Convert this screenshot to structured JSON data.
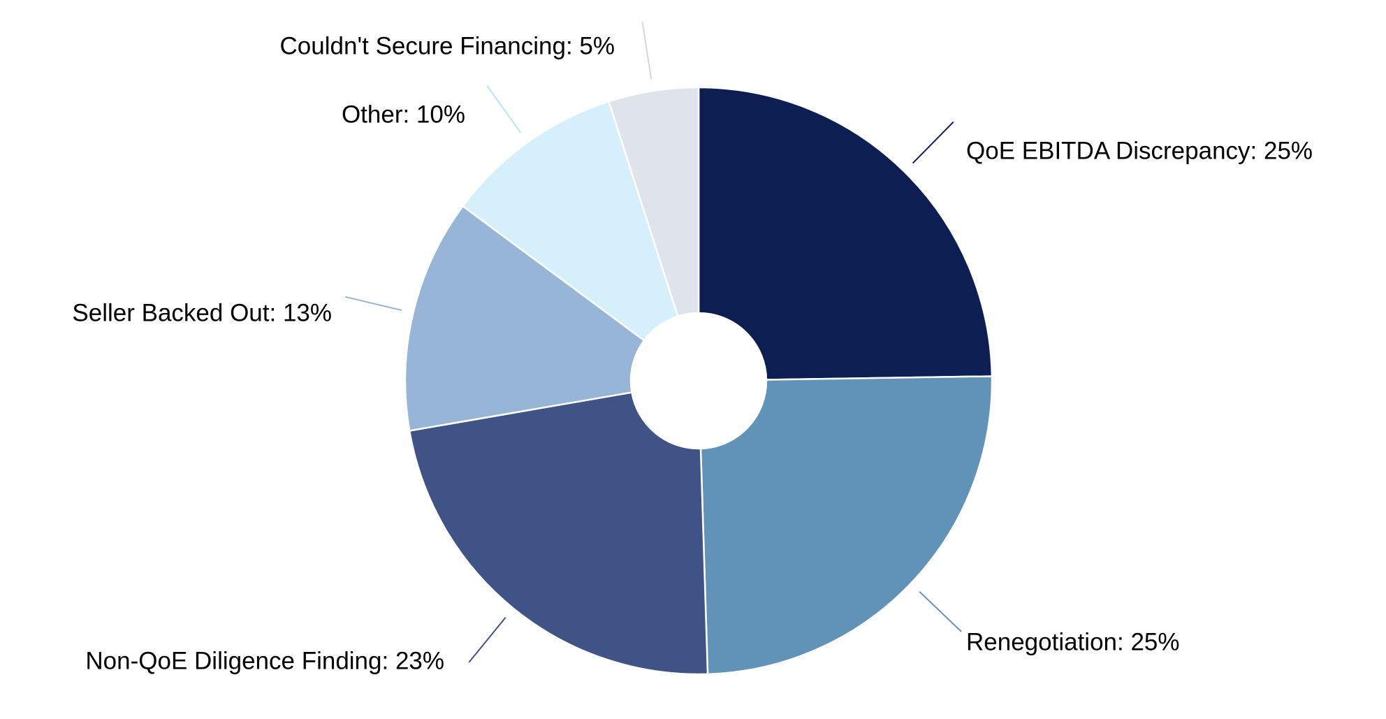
{
  "chart_data": {
    "type": "pie",
    "donut": true,
    "start": "12 o'clock",
    "direction": "clockwise",
    "slices": [
      {
        "label": "QoE EBITDA Discrepancy",
        "value": 25,
        "display": "QoE EBITDA Discrepancy: 25%",
        "color": "#0d1f52"
      },
      {
        "label": "Renegotiation",
        "value": 25,
        "display": "Renegotiation: 25%",
        "color": "#6193b8"
      },
      {
        "label": "Non-QoE Diligence Finding",
        "value": 23,
        "display": "Non-QoE Diligence Finding: 23%",
        "color": "#405387"
      },
      {
        "label": "Seller Backed Out",
        "value": 13,
        "display": "Seller Backed Out: 13%",
        "color": "#97b6d7"
      },
      {
        "label": "Other",
        "value": 10,
        "display": "Other: 10%",
        "color": "#d5effb"
      },
      {
        "label": "Couldn't Secure Financing",
        "value": 5,
        "display": "Couldn't Secure Financing: 5%",
        "color": "#dfe3ec"
      }
    ]
  }
}
